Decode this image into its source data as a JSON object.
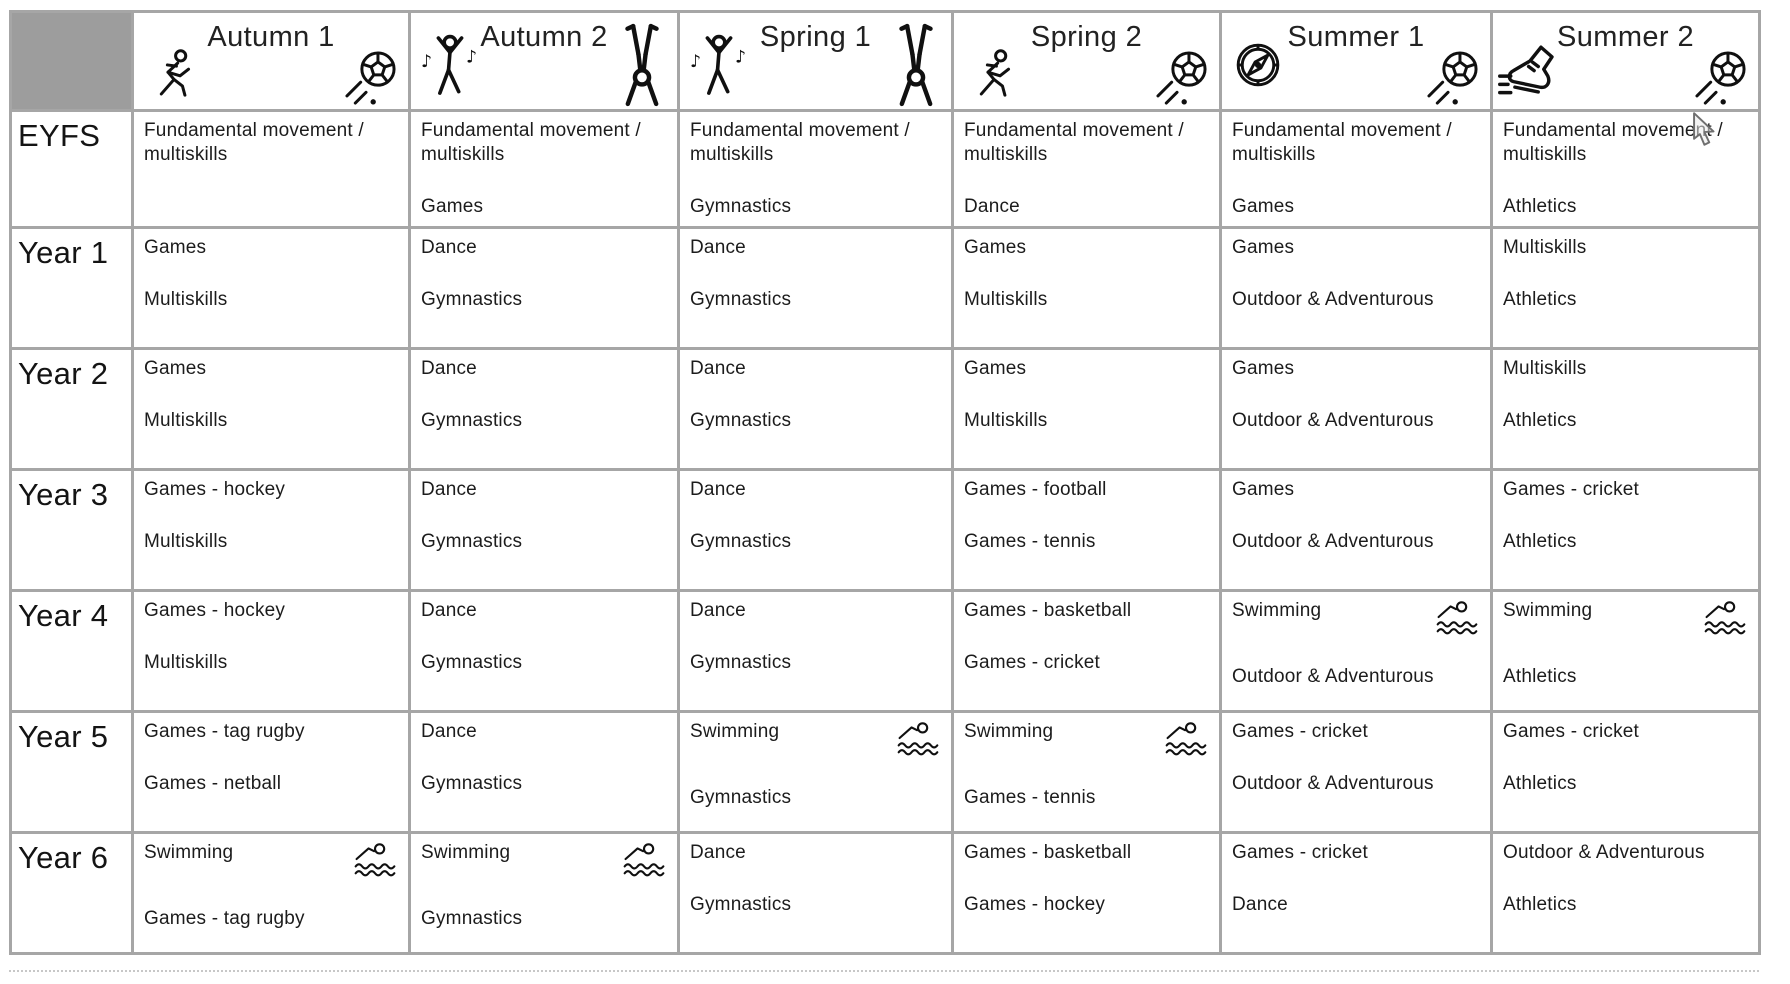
{
  "colors": {
    "grid": "#a6a6a6",
    "corner_fill": "#9d9d9d",
    "text": "#1c1c1c"
  },
  "cursor": {
    "visible": true
  },
  "table": {
    "corner_label": "",
    "terms": [
      {
        "label": "Autumn 1",
        "left_icon": "runner-icon",
        "right_icon": "football-icon"
      },
      {
        "label": "Autumn 2",
        "left_icon": "dancer-icon",
        "right_icon": "gymnast-icon"
      },
      {
        "label": "Spring 1",
        "left_icon": "dancer-icon",
        "right_icon": "gymnast-icon"
      },
      {
        "label": "Spring 2",
        "left_icon": "runner-icon",
        "right_icon": "football-icon"
      },
      {
        "label": "Summer 1",
        "left_icon": "compass-icon",
        "right_icon": "football-icon"
      },
      {
        "label": "Summer 2",
        "left_icon": "shoe-icon",
        "right_icon": "football-icon"
      }
    ],
    "rows": [
      {
        "label": "EYFS",
        "cells": [
          {
            "lines": [
              {
                "text": "Fundamental movement / multiskills"
              }
            ]
          },
          {
            "lines": [
              {
                "text": "Fundamental movement / multiskills"
              },
              {
                "text": "Games"
              }
            ]
          },
          {
            "lines": [
              {
                "text": "Fundamental movement / multiskills"
              },
              {
                "text": "Gymnastics"
              }
            ]
          },
          {
            "lines": [
              {
                "text": "Fundamental movement / multiskills"
              },
              {
                "text": "Dance"
              }
            ]
          },
          {
            "lines": [
              {
                "text": "Fundamental movement / multiskills"
              },
              {
                "text": "Games"
              }
            ]
          },
          {
            "lines": [
              {
                "text": "Fundamental movement / multiskills"
              },
              {
                "text": "Athletics"
              }
            ]
          }
        ]
      },
      {
        "label": "Year 1",
        "cells": [
          {
            "lines": [
              {
                "text": "Games"
              },
              {
                "text": "Multiskills"
              }
            ]
          },
          {
            "lines": [
              {
                "text": "Dance"
              },
              {
                "text": "Gymnastics"
              }
            ]
          },
          {
            "lines": [
              {
                "text": "Dance"
              },
              {
                "text": "Gymnastics"
              }
            ]
          },
          {
            "lines": [
              {
                "text": "Games"
              },
              {
                "text": "Multiskills"
              }
            ]
          },
          {
            "lines": [
              {
                "text": "Games"
              },
              {
                "text": "Outdoor & Adventurous"
              }
            ]
          },
          {
            "lines": [
              {
                "text": "Multiskills"
              },
              {
                "text": "Athletics"
              }
            ]
          }
        ]
      },
      {
        "label": "Year 2",
        "cells": [
          {
            "lines": [
              {
                "text": "Games"
              },
              {
                "text": "Multiskills"
              }
            ]
          },
          {
            "lines": [
              {
                "text": "Dance"
              },
              {
                "text": "Gymnastics"
              }
            ]
          },
          {
            "lines": [
              {
                "text": "Dance"
              },
              {
                "text": "Gymnastics"
              }
            ]
          },
          {
            "lines": [
              {
                "text": "Games"
              },
              {
                "text": "Multiskills"
              }
            ]
          },
          {
            "lines": [
              {
                "text": "Games"
              },
              {
                "text": "Outdoor & Adventurous"
              }
            ]
          },
          {
            "lines": [
              {
                "text": "Multiskills"
              },
              {
                "text": "Athletics"
              }
            ]
          }
        ]
      },
      {
        "label": "Year 3",
        "cells": [
          {
            "lines": [
              {
                "text": "Games - hockey"
              },
              {
                "text": "Multiskills"
              }
            ]
          },
          {
            "lines": [
              {
                "text": "Dance"
              },
              {
                "text": "Gymnastics"
              }
            ]
          },
          {
            "lines": [
              {
                "text": "Dance"
              },
              {
                "text": "Gymnastics"
              }
            ]
          },
          {
            "lines": [
              {
                "text": "Games - football"
              },
              {
                "text": "Games - tennis"
              }
            ]
          },
          {
            "lines": [
              {
                "text": "Games"
              },
              {
                "text": "Outdoor & Adventurous"
              }
            ]
          },
          {
            "lines": [
              {
                "text": "Games - cricket"
              },
              {
                "text": "Athletics"
              }
            ]
          }
        ]
      },
      {
        "label": "Year 4",
        "cells": [
          {
            "lines": [
              {
                "text": "Games - hockey"
              },
              {
                "text": "Multiskills"
              }
            ]
          },
          {
            "lines": [
              {
                "text": "Dance"
              },
              {
                "text": "Gymnastics"
              }
            ]
          },
          {
            "lines": [
              {
                "text": "Dance"
              },
              {
                "text": "Gymnastics"
              }
            ]
          },
          {
            "lines": [
              {
                "text": "Games - basketball"
              },
              {
                "text": "Games - cricket"
              }
            ]
          },
          {
            "lines": [
              {
                "text": "Swimming",
                "icon": "swimmer-icon"
              },
              {
                "text": "Outdoor & Adventurous"
              }
            ]
          },
          {
            "lines": [
              {
                "text": "Swimming",
                "icon": "swimmer-icon"
              },
              {
                "text": "Athletics"
              }
            ]
          }
        ]
      },
      {
        "label": "Year 5",
        "cells": [
          {
            "lines": [
              {
                "text": "Games - tag rugby"
              },
              {
                "text": "Games - netball"
              }
            ]
          },
          {
            "lines": [
              {
                "text": "Dance"
              },
              {
                "text": "Gymnastics"
              }
            ]
          },
          {
            "lines": [
              {
                "text": "Swimming",
                "icon": "swimmer-icon"
              },
              {
                "text": "Gymnastics"
              }
            ]
          },
          {
            "lines": [
              {
                "text": "Swimming",
                "icon": "swimmer-icon"
              },
              {
                "text": "Games - tennis"
              }
            ]
          },
          {
            "lines": [
              {
                "text": "Games - cricket"
              },
              {
                "text": "Outdoor & Adventurous"
              }
            ]
          },
          {
            "lines": [
              {
                "text": "Games - cricket"
              },
              {
                "text": "Athletics"
              }
            ]
          }
        ]
      },
      {
        "label": "Year 6",
        "cells": [
          {
            "lines": [
              {
                "text": "Swimming",
                "icon": "swimmer-icon"
              },
              {
                "text": "Games - tag rugby"
              }
            ]
          },
          {
            "lines": [
              {
                "text": "Swimming",
                "icon": "swimmer-icon"
              },
              {
                "text": "Gymnastics"
              }
            ]
          },
          {
            "lines": [
              {
                "text": "Dance"
              },
              {
                "text": "Gymnastics"
              }
            ]
          },
          {
            "lines": [
              {
                "text": "Games - basketball"
              },
              {
                "text": "Games - hockey"
              }
            ]
          },
          {
            "lines": [
              {
                "text": "Games - cricket"
              },
              {
                "text": "Dance"
              }
            ]
          },
          {
            "lines": [
              {
                "text": "Outdoor & Adventurous"
              },
              {
                "text": "Athletics"
              }
            ]
          }
        ]
      }
    ]
  }
}
